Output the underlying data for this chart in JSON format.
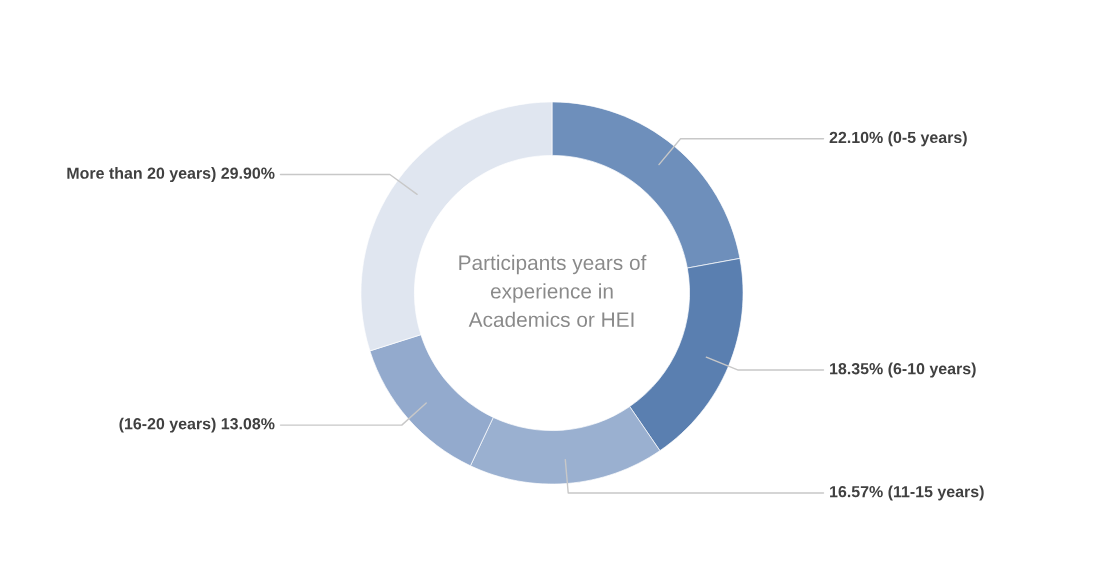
{
  "chart_data": {
    "type": "donut",
    "title": "Participants years of\nexperience in\nAcademics or HEI",
    "categories": [
      "22.10% (0-5 years)",
      "18.35% (6-10 years)",
      "16.57% (11-15 years)",
      "(16-20 years) 13.08%",
      "More than 20 years) 29.90%"
    ],
    "values": [
      22.1,
      18.35,
      16.57,
      13.08,
      29.9
    ],
    "colors": [
      "#6e8fbb",
      "#5a7fb0",
      "#9ab0d0",
      "#93aacd",
      "#e0e6f0"
    ],
    "legend": false
  }
}
